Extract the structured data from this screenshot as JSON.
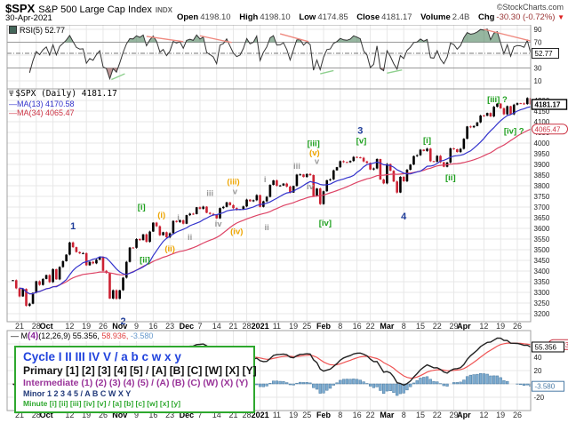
{
  "header": {
    "symbol": "$SPX",
    "name": "S&P 500 Large Cap Index",
    "exchange": "INDX",
    "source": "©StockCharts.com",
    "date": "30-Apr-2021",
    "quote": {
      "open": {
        "label": "Open",
        "value": "4198.10"
      },
      "high": {
        "label": "High",
        "value": "4198.10"
      },
      "low": {
        "label": "Low",
        "value": "4174.85"
      },
      "close": {
        "label": "Close",
        "value": "4181.17"
      },
      "volume": {
        "label": "Volume",
        "value": "2.4B"
      },
      "chg": {
        "label": "Chg",
        "value": "-30.30 (-0.72%)",
        "arrow": "▼"
      }
    }
  },
  "rsi_panel": {
    "legend": "RSI(5) 52.77",
    "value_box": "52.77"
  },
  "main_panel": {
    "title": "$SPX (Daily) 4181.17",
    "ma1_label": "MA(13) 4170.58",
    "ma2_label": "MA(34) 4065.47",
    "price_box": "4181.17",
    "ma2_box": "4065.47"
  },
  "macd_panel": {
    "dash": "—",
    "m": "M",
    "wave": "(4)",
    "params": "(12,26,9)",
    "v1": "55.356,",
    "v2": "58.936,",
    "v3": "-3.580",
    "box_macd": "55.356",
    "box_signal": "58.936",
    "box_hist": "-3.580"
  },
  "cycle_legend": {
    "lines": [
      {
        "text": "Cycle I II III IV V / a b c w x y"
      },
      {
        "text": "Primary [1] [2] [3] [4] [5] / [A] [B] [C] [W] [X] [Y]"
      },
      {
        "text": "Intermediate (1) (2) (3) (4) (5) / (A) (B) (C) (W) (X) (Y)"
      },
      {
        "text": "Minor 1 2 3 4 5 / A B C W X Y"
      },
      {
        "text": "Minute [i] [ii] [iii] [iv] [v] / [a] [b] [c] [w] [x] [y]"
      }
    ]
  },
  "colors": {
    "grid": "#e7e7e7",
    "panel_border": "#a0a0a0",
    "candle_up": "#000000",
    "candle_down": "#cc2233",
    "ma13": "#3333cc",
    "ma34": "#dd4466",
    "rsi_line": "#333333",
    "rsi_band": "#999999",
    "rsi_fill_over": "#3f7a52",
    "rsi_fill_under": "#8a4444",
    "trend_red": "#ef8a80",
    "trend_green": "#8fd08f",
    "macd_line": "#222222",
    "macd_signal": "#ef5555",
    "hist_fill": "#6fa3cc",
    "hist_stroke": "#49799f",
    "minor": "#1f3d99",
    "minute": "#1fa01f",
    "minuette": "#eea500",
    "sub": "#999999"
  },
  "chart_data": {
    "type": "candlestick",
    "title": "$SPX (Daily)",
    "last_close": 4181.17,
    "price_axis": {
      "min": 3200,
      "max": 4200,
      "step": 50
    },
    "closes": [
      3357,
      3319,
      3281,
      3316,
      3237,
      3247,
      3298,
      3352,
      3335,
      3363,
      3381,
      3348,
      3409,
      3361,
      3419,
      3446,
      3477,
      3534,
      3512,
      3489,
      3483,
      3484,
      3427,
      3443,
      3436,
      3453,
      3465,
      3401,
      3391,
      3271,
      3310,
      3270,
      3310,
      3369,
      3443,
      3510,
      3509,
      3550,
      3545,
      3572,
      3537,
      3585,
      3627,
      3610,
      3568,
      3582,
      3558,
      3577,
      3635,
      3630,
      3638,
      3622,
      3662,
      3669,
      3667,
      3699,
      3692,
      3702,
      3673,
      3668,
      3663,
      3647,
      3695,
      3701,
      3722,
      3709,
      3695,
      3687,
      3690,
      3703,
      3735,
      3727,
      3732,
      3756,
      3701,
      3727,
      3748,
      3804,
      3825,
      3800,
      3801,
      3810,
      3796,
      3768,
      3799,
      3852,
      3853,
      3841,
      3855,
      3850,
      3751,
      3787,
      3714,
      3774,
      3826,
      3830,
      3872,
      3887,
      3915,
      3911,
      3910,
      3916,
      3935,
      3933,
      3931,
      3914,
      3907,
      3876,
      3881,
      3925,
      3829,
      3811,
      3902,
      3870,
      3820,
      3768,
      3842,
      3821,
      3875,
      3899,
      3939,
      3943,
      3969,
      3963,
      3974,
      3915,
      3913,
      3940,
      3910,
      3889,
      3909,
      3975,
      3971,
      3958,
      3973,
      4020,
      4078,
      4074,
      4080,
      4097,
      4129,
      4128,
      4141,
      4125,
      4170,
      4185,
      4163,
      4135,
      4173,
      4135,
      4180,
      4187,
      4186,
      4183,
      4211,
      4181.17
    ],
    "ma_periods": [
      13,
      34
    ],
    "ma_last": [
      4170.58,
      4065.47
    ],
    "rsi": {
      "period": 5,
      "last": 52.77,
      "overbought": 70,
      "oversold": 30,
      "yticks": [
        90,
        70,
        30,
        10
      ],
      "red_trendlines": [
        [
          40,
          79,
          51,
          71
        ],
        [
          56,
          80,
          65.5,
          69.5
        ],
        [
          80,
          83,
          88.5,
          71
        ],
        [
          141,
          90,
          155,
          72
        ]
      ],
      "green_trendlines": [
        [
          29.5,
          12,
          33.5,
          21
        ],
        [
          92,
          21,
          96,
          26
        ],
        [
          112,
          22,
          116.5,
          27
        ]
      ]
    },
    "macd": {
      "params": [
        12,
        26,
        9
      ],
      "last": [
        55.356,
        58.936,
        -3.58
      ],
      "yticks": [
        40,
        20,
        -20
      ]
    },
    "xticks": [
      {
        "l": "21",
        "i": 2
      },
      {
        "l": "28",
        "i": 7
      },
      {
        "l": "Oct",
        "i": 10,
        "b": 1
      },
      {
        "l": "12",
        "i": 17
      },
      {
        "l": "19",
        "i": 22
      },
      {
        "l": "26",
        "i": 27
      },
      {
        "l": "Nov",
        "i": 32,
        "b": 1
      },
      {
        "l": "9",
        "i": 37
      },
      {
        "l": "16",
        "i": 42
      },
      {
        "l": "23",
        "i": 47
      },
      {
        "l": "Dec",
        "i": 52,
        "b": 1
      },
      {
        "l": "7",
        "i": 56
      },
      {
        "l": "14",
        "i": 61
      },
      {
        "l": "21",
        "i": 66
      },
      {
        "l": "28",
        "i": 70
      },
      {
        "l": "2021",
        "i": 74,
        "b": 1
      },
      {
        "l": "11",
        "i": 79
      },
      {
        "l": "19",
        "i": 84
      },
      {
        "l": "25",
        "i": 88
      },
      {
        "l": "Feb",
        "i": 93,
        "b": 1
      },
      {
        "l": "8",
        "i": 98
      },
      {
        "l": "16",
        "i": 103
      },
      {
        "l": "22",
        "i": 107
      },
      {
        "l": "Mar",
        "i": 112,
        "b": 1
      },
      {
        "l": "8",
        "i": 117
      },
      {
        "l": "15",
        "i": 122
      },
      {
        "l": "22",
        "i": 127
      },
      {
        "l": "29",
        "i": 132
      },
      {
        "l": "Apr",
        "i": 135,
        "b": 1
      },
      {
        "l": "12",
        "i": 141
      },
      {
        "l": "19",
        "i": 146
      },
      {
        "l": "26",
        "i": 151
      }
    ],
    "week_start_indices": [
      2,
      7,
      12,
      17,
      22,
      27,
      32,
      37,
      42,
      47,
      51,
      56,
      61,
      66,
      70,
      74,
      79,
      84,
      88,
      93,
      98,
      103,
      107,
      112,
      117,
      122,
      127,
      132,
      136,
      141,
      146,
      151
    ],
    "wave_labels": [
      {
        "t": "1",
        "tier": "minor",
        "i": 18,
        "p": 3608
      },
      {
        "t": "2",
        "tier": "minor",
        "i": 33,
        "p": 3162
      },
      {
        "t": "[i]",
        "tier": "minute",
        "i": 38.5,
        "p": 3700
      },
      {
        "t": "(i)",
        "tier": "minuette",
        "i": 44.5,
        "p": 3663
      },
      {
        "t": "(ii)",
        "tier": "minuette",
        "i": 47,
        "p": 3505
      },
      {
        "t": "[ii]",
        "tier": "minute",
        "i": 39.5,
        "p": 3452
      },
      {
        "t": "i",
        "tier": "sub",
        "i": 49.5,
        "p": 3650
      },
      {
        "t": "ii",
        "tier": "sub",
        "i": 53,
        "p": 3558
      },
      {
        "t": "iii",
        "tier": "sub",
        "i": 59,
        "p": 3765
      },
      {
        "t": "iv",
        "tier": "sub",
        "i": 61.5,
        "p": 3620
      },
      {
        "t": "(iii)",
        "tier": "minuette",
        "i": 66,
        "p": 3818
      },
      {
        "t": "v",
        "tier": "sub",
        "i": 66.5,
        "p": 3772
      },
      {
        "t": "(iv)",
        "tier": "minuette",
        "i": 67,
        "p": 3585
      },
      {
        "t": "i",
        "tier": "sub",
        "i": 75.5,
        "p": 3830
      },
      {
        "t": "ii",
        "tier": "sub",
        "i": 76,
        "p": 3605
      },
      {
        "t": "iii",
        "tier": "sub",
        "i": 85,
        "p": 3892
      },
      {
        "t": "iv",
        "tier": "sub",
        "i": 89,
        "p": 3795
      },
      {
        "t": "[iii]",
        "tier": "minute",
        "i": 90,
        "p": 3998
      },
      {
        "t": "(v)",
        "tier": "minuette",
        "i": 90.3,
        "p": 3955
      },
      {
        "t": "v",
        "tier": "sub",
        "i": 91,
        "p": 3915
      },
      {
        "t": "[iv]",
        "tier": "minute",
        "i": 93.5,
        "p": 3625
      },
      {
        "t": "3",
        "tier": "minor",
        "i": 104,
        "p": 4056
      },
      {
        "t": "[v]",
        "tier": "minute",
        "i": 104.3,
        "p": 4010
      },
      {
        "t": "4",
        "tier": "minor",
        "i": 117,
        "p": 3655
      },
      {
        "t": "[i]",
        "tier": "minute",
        "i": 124,
        "p": 4012
      },
      {
        "t": "[ii]",
        "tier": "minute",
        "i": 131,
        "p": 3838
      },
      {
        "t": "[iii] ?",
        "tier": "minute",
        "i": 145,
        "p": 4205
      },
      {
        "t": "[iv] ?",
        "tier": "minute",
        "i": 150,
        "p": 4057
      }
    ]
  }
}
